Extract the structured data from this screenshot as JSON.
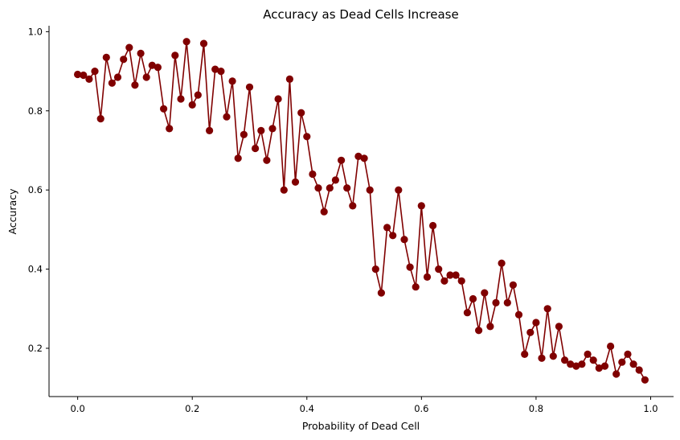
{
  "chart_data": {
    "type": "line",
    "title": "Accuracy as Dead Cells Increase",
    "xlabel": "Probability of Dead Cell",
    "ylabel": "Accuracy",
    "xlim": [
      -0.05,
      1.04
    ],
    "ylim": [
      0.078,
      1.015
    ],
    "xticks": [
      0.0,
      0.2,
      0.4,
      0.6,
      0.8,
      1.0
    ],
    "xtick_labels": [
      "0.0",
      "0.2",
      "0.4",
      "0.6",
      "0.8",
      "1.0"
    ],
    "yticks": [
      0.2,
      0.4,
      0.6,
      0.8,
      1.0
    ],
    "ytick_labels": [
      "0.2",
      "0.4",
      "0.6",
      "0.8",
      "1.0"
    ],
    "grid": false,
    "line_color": "#800000",
    "marker": "circle",
    "x": [
      0.0,
      0.01,
      0.02,
      0.03,
      0.04,
      0.05,
      0.06,
      0.07,
      0.08,
      0.09,
      0.1,
      0.11,
      0.12,
      0.13,
      0.14,
      0.15,
      0.16,
      0.17,
      0.18,
      0.19,
      0.2,
      0.21,
      0.22,
      0.23,
      0.24,
      0.25,
      0.26,
      0.27,
      0.28,
      0.29,
      0.3,
      0.31,
      0.32,
      0.33,
      0.34,
      0.35,
      0.36,
      0.37,
      0.38,
      0.39,
      0.4,
      0.41,
      0.42,
      0.43,
      0.44,
      0.45,
      0.46,
      0.47,
      0.48,
      0.49,
      0.5,
      0.51,
      0.52,
      0.53,
      0.54,
      0.55,
      0.56,
      0.57,
      0.58,
      0.59,
      0.6,
      0.61,
      0.62,
      0.63,
      0.64,
      0.65,
      0.66,
      0.67,
      0.68,
      0.69,
      0.7,
      0.71,
      0.72,
      0.73,
      0.74,
      0.75,
      0.76,
      0.77,
      0.78,
      0.79,
      0.8,
      0.81,
      0.82,
      0.83,
      0.84,
      0.85,
      0.86,
      0.87,
      0.88,
      0.89,
      0.9,
      0.91,
      0.92,
      0.93,
      0.94,
      0.95,
      0.96,
      0.97,
      0.98,
      0.99
    ],
    "y": [
      0.892,
      0.89,
      0.88,
      0.9,
      0.78,
      0.935,
      0.87,
      0.885,
      0.93,
      0.96,
      0.865,
      0.945,
      0.885,
      0.915,
      0.91,
      0.805,
      0.755,
      0.94,
      0.83,
      0.975,
      0.815,
      0.84,
      0.97,
      0.75,
      0.905,
      0.9,
      0.785,
      0.875,
      0.68,
      0.74,
      0.86,
      0.705,
      0.75,
      0.675,
      0.755,
      0.83,
      0.6,
      0.88,
      0.62,
      0.795,
      0.735,
      0.64,
      0.605,
      0.545,
      0.605,
      0.625,
      0.675,
      0.605,
      0.56,
      0.685,
      0.68,
      0.6,
      0.4,
      0.34,
      0.505,
      0.485,
      0.6,
      0.475,
      0.405,
      0.355,
      0.56,
      0.38,
      0.51,
      0.4,
      0.37,
      0.385,
      0.385,
      0.37,
      0.29,
      0.325,
      0.245,
      0.34,
      0.255,
      0.315,
      0.415,
      0.315,
      0.36,
      0.285,
      0.185,
      0.24,
      0.265,
      0.175,
      0.3,
      0.18,
      0.255,
      0.17,
      0.16,
      0.155,
      0.16,
      0.185,
      0.17,
      0.15,
      0.155,
      0.205,
      0.135,
      0.165,
      0.185,
      0.16,
      0.145,
      0.12
    ]
  }
}
